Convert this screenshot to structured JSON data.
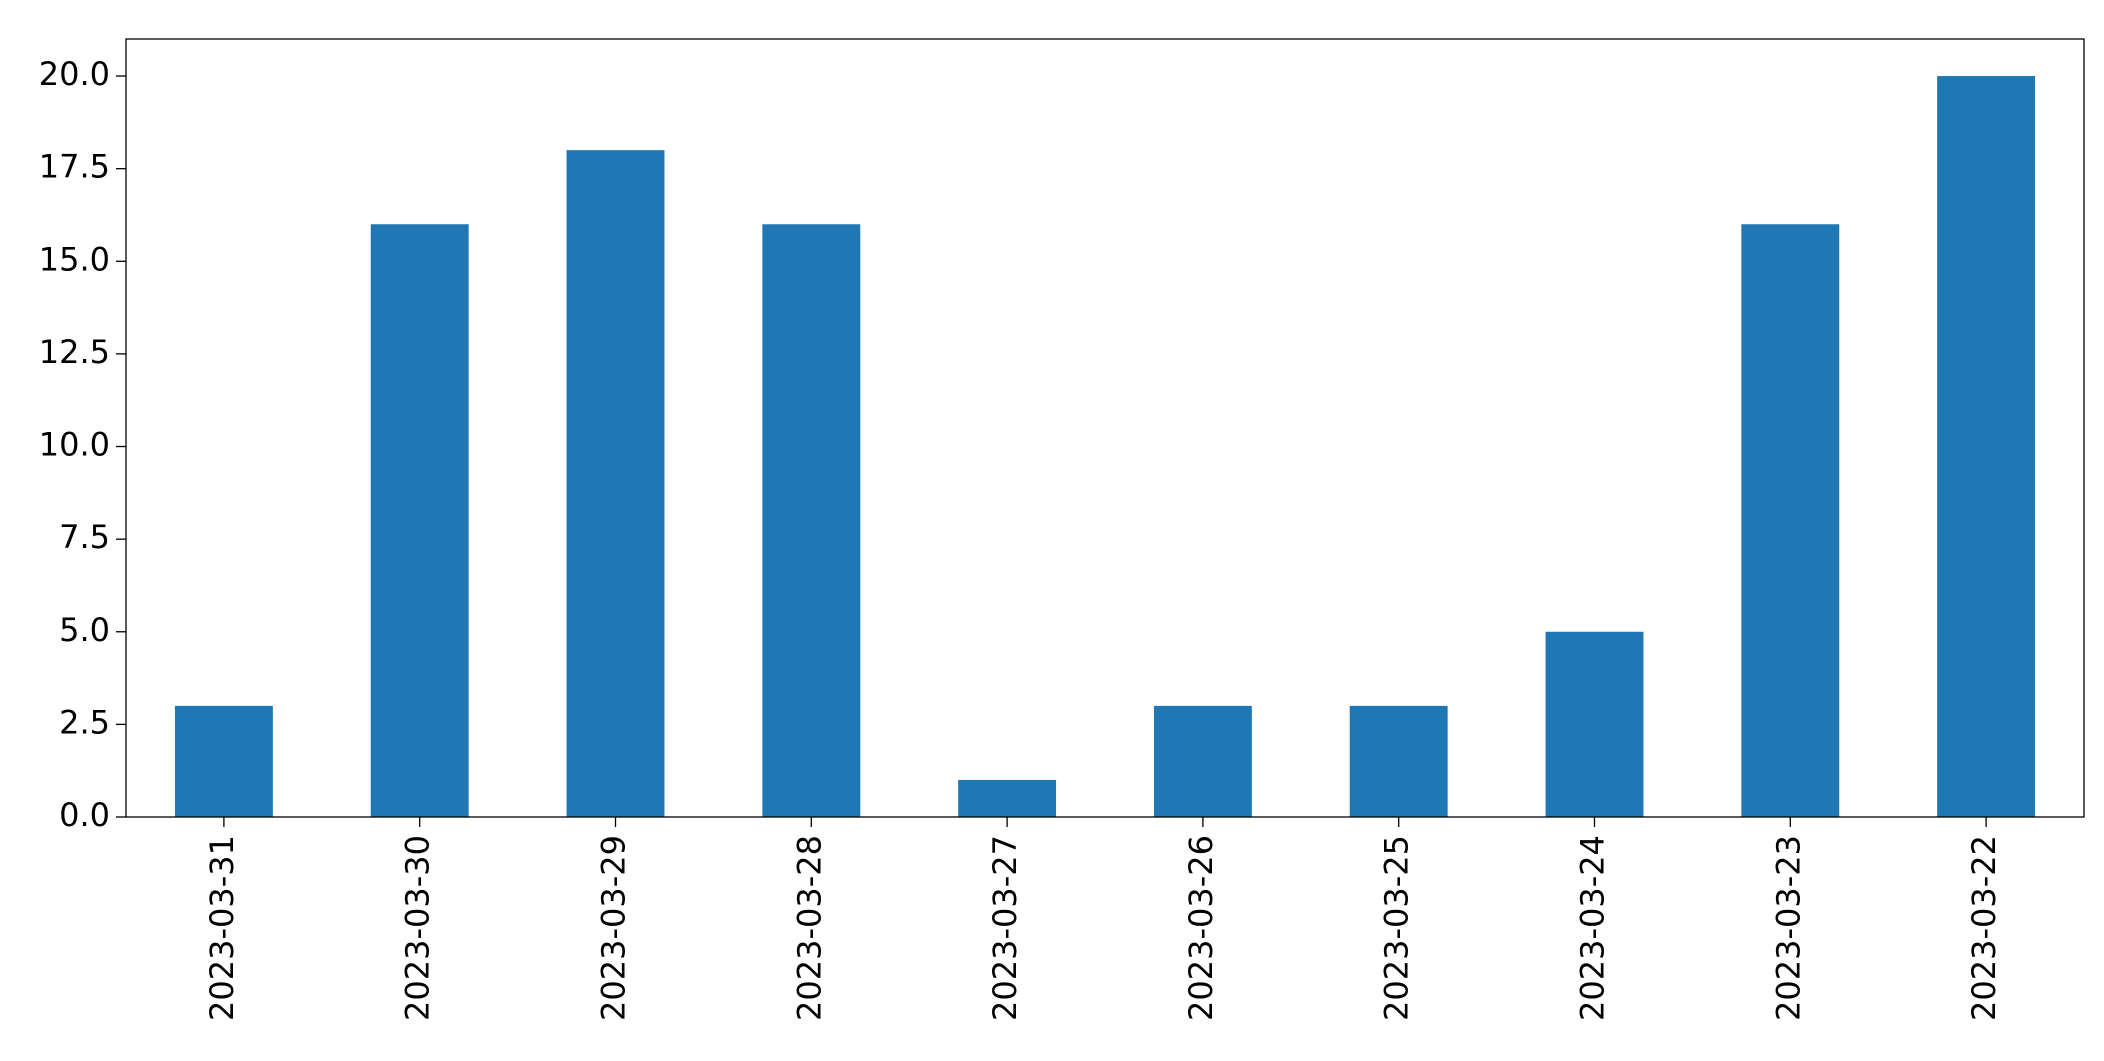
{
  "chart_data": {
    "type": "bar",
    "categories": [
      "2023-03-31",
      "2023-03-30",
      "2023-03-29",
      "2023-03-28",
      "2023-03-27",
      "2023-03-26",
      "2023-03-25",
      "2023-03-24",
      "2023-03-23",
      "2023-03-22"
    ],
    "values": [
      3,
      16,
      18,
      16,
      1,
      3,
      3,
      5,
      16,
      20
    ],
    "color": "#1f77b4",
    "ylim": [
      0,
      21
    ],
    "yticks": [
      {
        "value": 0,
        "label": "0.0"
      },
      {
        "value": 2.5,
        "label": "2.5"
      },
      {
        "value": 5,
        "label": "5.0"
      },
      {
        "value": 7.5,
        "label": "7.5"
      },
      {
        "value": 10,
        "label": "10.0"
      },
      {
        "value": 12.5,
        "label": "12.5"
      },
      {
        "value": 15,
        "label": "15.0"
      },
      {
        "value": 17.5,
        "label": "17.5"
      },
      {
        "value": 20,
        "label": "20.0"
      }
    ],
    "grid": false
  }
}
